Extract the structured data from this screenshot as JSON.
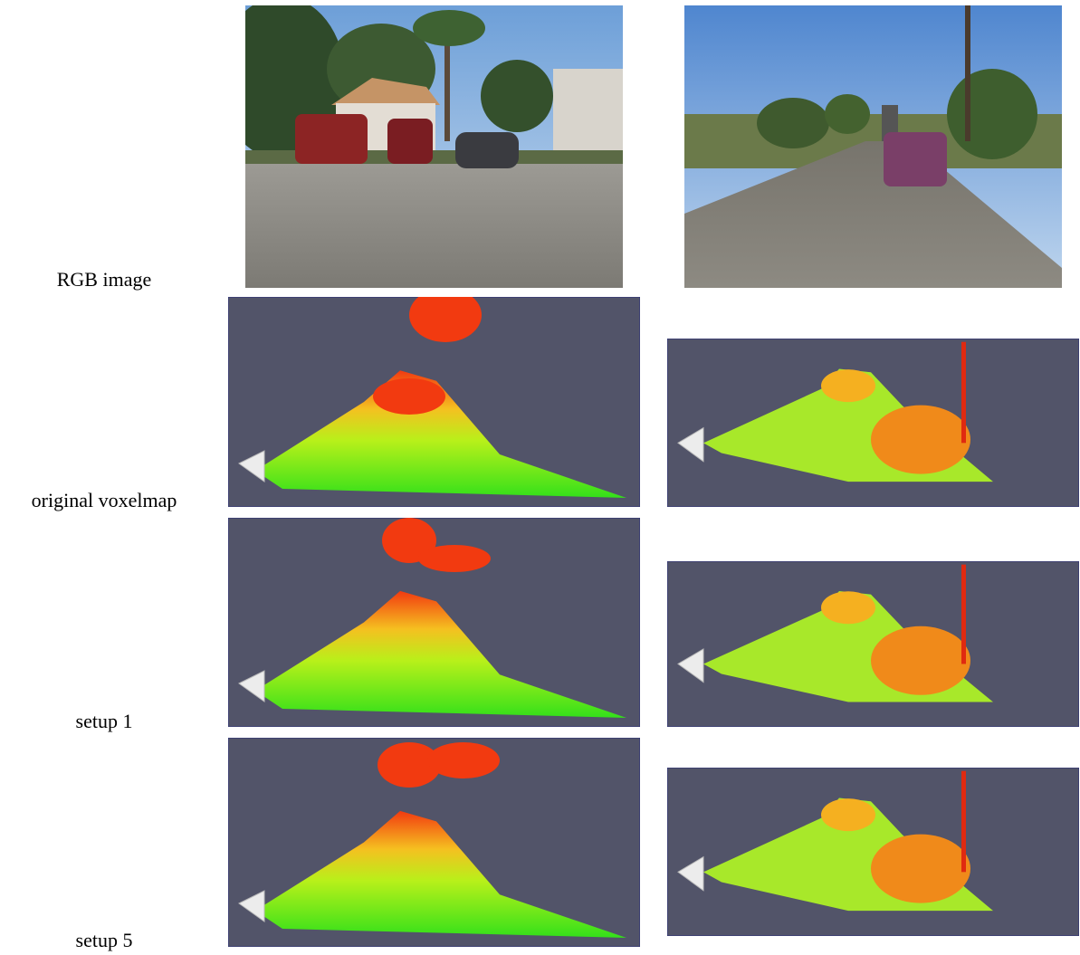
{
  "row_labels": [
    "RGB image",
    "original voxelmap",
    "setup 1",
    "setup 5"
  ]
}
